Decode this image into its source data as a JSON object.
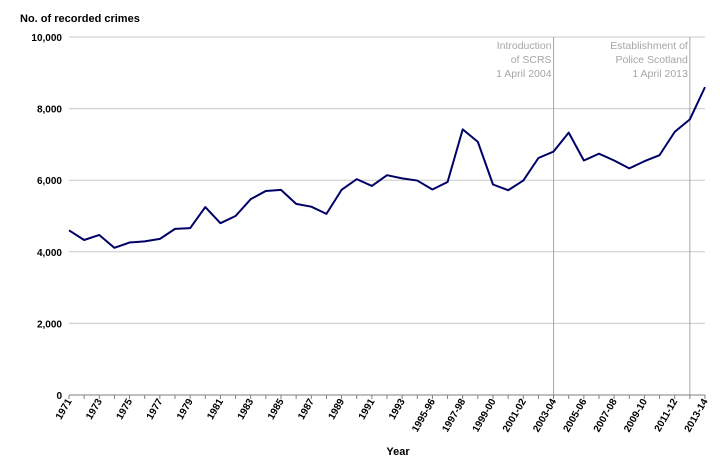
{
  "chart_data": {
    "type": "line",
    "ylabel": "No. of recorded crimes",
    "xlabel": "Year",
    "ylim": [
      0,
      10000
    ],
    "yticks": [
      0,
      2000,
      4000,
      6000,
      8000,
      10000
    ],
    "ytick_labels": [
      "0",
      "2,000",
      "4,000",
      "6,000",
      "8,000",
      "10,000"
    ],
    "grid": true,
    "line_color": "#000066",
    "annotation_color": "#a6a6a6",
    "categories": [
      "1971",
      "1972",
      "1973",
      "1974",
      "1975",
      "1976",
      "1977",
      "1978",
      "1979",
      "1980",
      "1981",
      "1982",
      "1983",
      "1984",
      "1985",
      "1986",
      "1987",
      "1988",
      "1989",
      "1990",
      "1991",
      "1992",
      "1993",
      "1994",
      "1995-96",
      "1996-97",
      "1997-98",
      "1998-99",
      "1999-00",
      "2000-01",
      "2001-02",
      "2002-03",
      "2003-04",
      "2004-05",
      "2005-06",
      "2006-07",
      "2007-08",
      "2008-09",
      "2009-10",
      "2010-11",
      "2011-12",
      "2012-13",
      "2013-14"
    ],
    "tick_labels": [
      "1971",
      "",
      "1973",
      "",
      "1975",
      "",
      "1977",
      "",
      "1979",
      "",
      "1981",
      "",
      "1983",
      "",
      "1985",
      "",
      "1987",
      "",
      "1989",
      "",
      "1991",
      "",
      "1993",
      "",
      "1995-96",
      "",
      "1997-98",
      "",
      "1999-00",
      "",
      "2001-02",
      "",
      "2003-04",
      "",
      "2005-06",
      "",
      "2007-08",
      "",
      "2009-10",
      "",
      "2011-12",
      "",
      "2013-14"
    ],
    "series": [
      {
        "values": [
          4600,
          4330,
          4470,
          4110,
          4260,
          4290,
          4360,
          4640,
          4660,
          5250,
          4800,
          5000,
          5470,
          5700,
          5730,
          5340,
          5260,
          5060,
          5730,
          6030,
          5840,
          6140,
          6050,
          5990,
          5740,
          5950,
          7420,
          7070,
          5880,
          5720,
          5990,
          6620,
          6800,
          7330,
          6550,
          6740,
          6550,
          6330,
          6530,
          6700,
          7350,
          7700,
          8600
        ]
      }
    ],
    "annotations": [
      {
        "at_index": 32,
        "lines": [
          "Introduction",
          "of SCRS",
          "1 April 2004"
        ]
      },
      {
        "at_index": 41,
        "lines": [
          "Establishment of",
          "Police Scotland",
          "1 April 2013"
        ]
      }
    ]
  }
}
